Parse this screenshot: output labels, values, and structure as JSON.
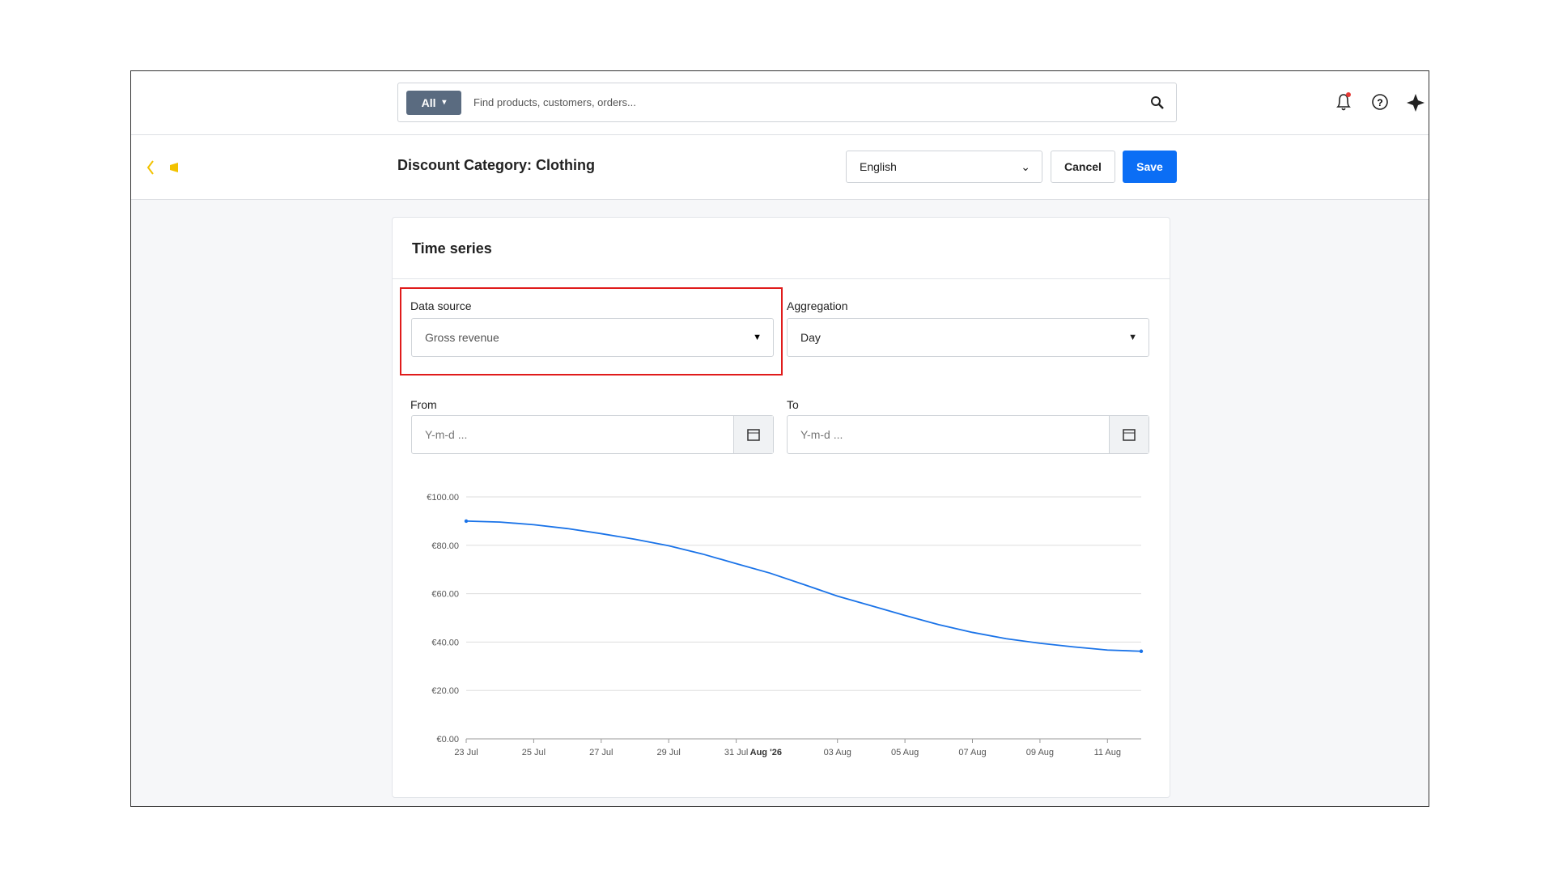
{
  "search": {
    "scope": "All",
    "placeholder": "Find products, customers, orders..."
  },
  "header": {
    "title": "Discount Category: Clothing",
    "language": "English",
    "cancel": "Cancel",
    "save": "Save"
  },
  "card": {
    "title": "Time series",
    "fields": {
      "data_source": {
        "label": "Data source",
        "value": "Gross revenue"
      },
      "aggregation": {
        "label": "Aggregation",
        "value": "Day"
      },
      "from": {
        "label": "From",
        "placeholder": "Y-m-d ..."
      },
      "to": {
        "label": "To",
        "placeholder": "Y-m-d ..."
      }
    }
  },
  "chart_data": {
    "type": "line",
    "categories": [
      "23 Jul",
      null,
      "25 Jul",
      null,
      "27 Jul",
      null,
      "29 Jul",
      null,
      "31 Jul",
      "Aug '26",
      null,
      "03 Aug",
      null,
      "05 Aug",
      null,
      "07 Aug",
      null,
      "09 Aug",
      null,
      "11 Aug",
      null
    ],
    "bold_categories": [
      9
    ],
    "series": [
      {
        "color": "#1a73e8",
        "values": [
          90,
          89.6,
          88.5,
          86.9,
          84.8,
          82.5,
          79.8,
          76.4,
          72.4,
          68.5,
          63.8,
          59,
          55,
          51,
          47.2,
          44,
          41.4,
          39.5,
          38,
          36.7,
          36.2
        ]
      }
    ],
    "ylim": [
      0,
      100
    ],
    "yticks": [
      {
        "value": 0,
        "label": "€0.00"
      },
      {
        "value": 20,
        "label": "€20.00"
      },
      {
        "value": 40,
        "label": "€40.00"
      },
      {
        "value": 60,
        "label": "€60.00"
      },
      {
        "value": 80,
        "label": "€80.00"
      },
      {
        "value": 100,
        "label": "€100.00"
      }
    ],
    "grid": true
  }
}
